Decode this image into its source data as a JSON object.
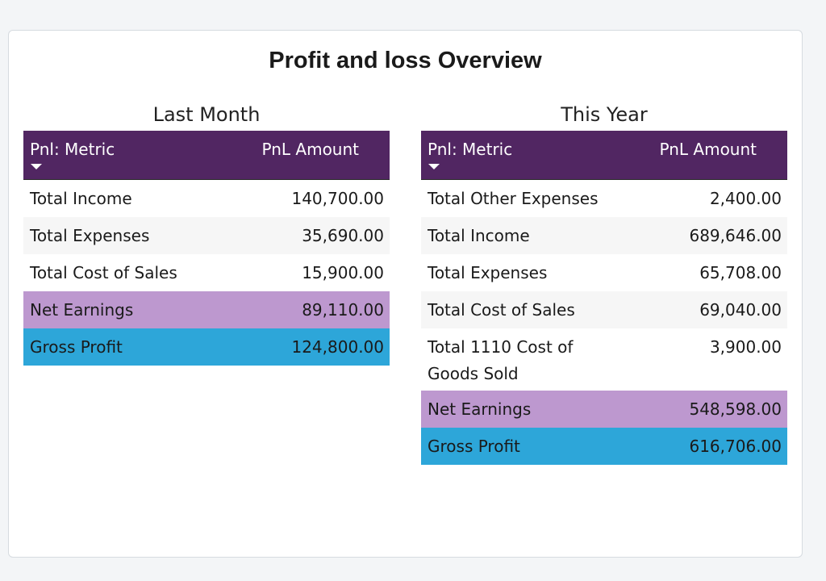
{
  "title": "Profit and loss Overview",
  "colors": {
    "header_bg": "#512662",
    "net_earnings_bg": "#bd98cf",
    "gross_profit_bg": "#2da6d9"
  },
  "last_month": {
    "heading": "Last Month",
    "columns": {
      "metric": "Pnl: Metric",
      "amount": "PnL Amount"
    },
    "rows": [
      {
        "metric": "Total Income",
        "amount": "140,700.00"
      },
      {
        "metric": "Total Expenses",
        "amount": "35,690.00"
      },
      {
        "metric": "Total Cost of Sales",
        "amount": "15,900.00"
      },
      {
        "metric": "Net Earnings",
        "amount": "89,110.00"
      },
      {
        "metric": "Gross Profit",
        "amount": "124,800.00"
      }
    ]
  },
  "this_year": {
    "heading": "This Year",
    "columns": {
      "metric": "Pnl: Metric",
      "amount": "PnL Amount"
    },
    "rows": [
      {
        "metric": "Total Other Expenses",
        "amount": "2,400.00"
      },
      {
        "metric": "Total Income",
        "amount": "689,646.00"
      },
      {
        "metric": "Total Expenses",
        "amount": "65,708.00"
      },
      {
        "metric": "Total Cost of Sales",
        "amount": "69,040.00"
      },
      {
        "metric": "Total 1110 Cost of Goods Sold",
        "amount": "3,900.00"
      },
      {
        "metric": "Net Earnings",
        "amount": "548,598.00"
      },
      {
        "metric": "Gross Profit",
        "amount": "616,706.00"
      }
    ]
  }
}
